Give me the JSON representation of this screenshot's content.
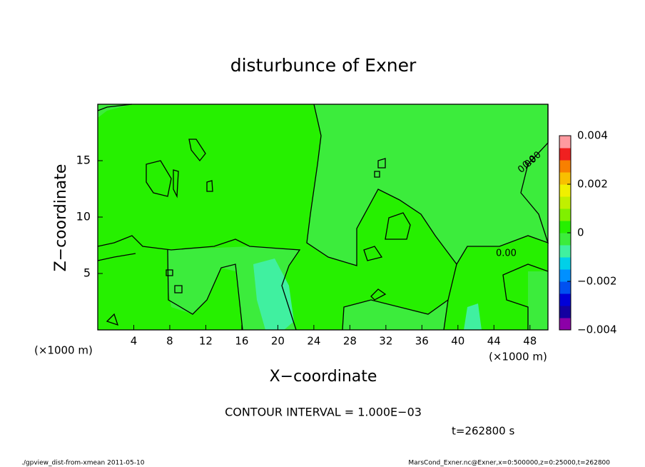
{
  "chart_data": {
    "type": "contour",
    "title": "disturbunce of Exner",
    "x_label": "X−coordinate",
    "y_label": "Z−coordinate",
    "x_unit": "(×1000 m)",
    "x_unit_right": "(×1000 m)",
    "xlim": [
      0,
      50
    ],
    "ylim": [
      0,
      20
    ],
    "xticks": [
      4,
      8,
      12,
      16,
      20,
      24,
      28,
      32,
      36,
      40,
      44,
      48
    ],
    "yticks": [
      5,
      10,
      15
    ],
    "colorbar": {
      "clim": [
        -0.004,
        0.004
      ],
      "ticks": [
        0.004,
        0.002,
        0,
        {
          "value": -0.002,
          "label": "−0.002"
        },
        {
          "value": -0.004,
          "label": "−0.004"
        }
      ],
      "colors": [
        "#8c00a8",
        "#1400a0",
        "#0000d8",
        "#0050f0",
        "#0090ff",
        "#00d0e8",
        "#40f0a0",
        "#3cec3c",
        "#26f000",
        "#80f000",
        "#c0f000",
        "#f0f000",
        "#f8c000",
        "#f88000",
        "#f02020",
        "#ff9aa0"
      ]
    },
    "contour_labels": [
      "0.00",
      "0.00",
      "0.00"
    ],
    "contour_interval": "CONTOUR INTERVAL = 1.000E−03",
    "time": "t=262800 s",
    "footer_left": "./gpview_dist-from-xmean  2011-05-10",
    "footer_right": "MarsCond_Exner.nc@Exner,x=0:500000,z=0:25000,t=262800"
  }
}
